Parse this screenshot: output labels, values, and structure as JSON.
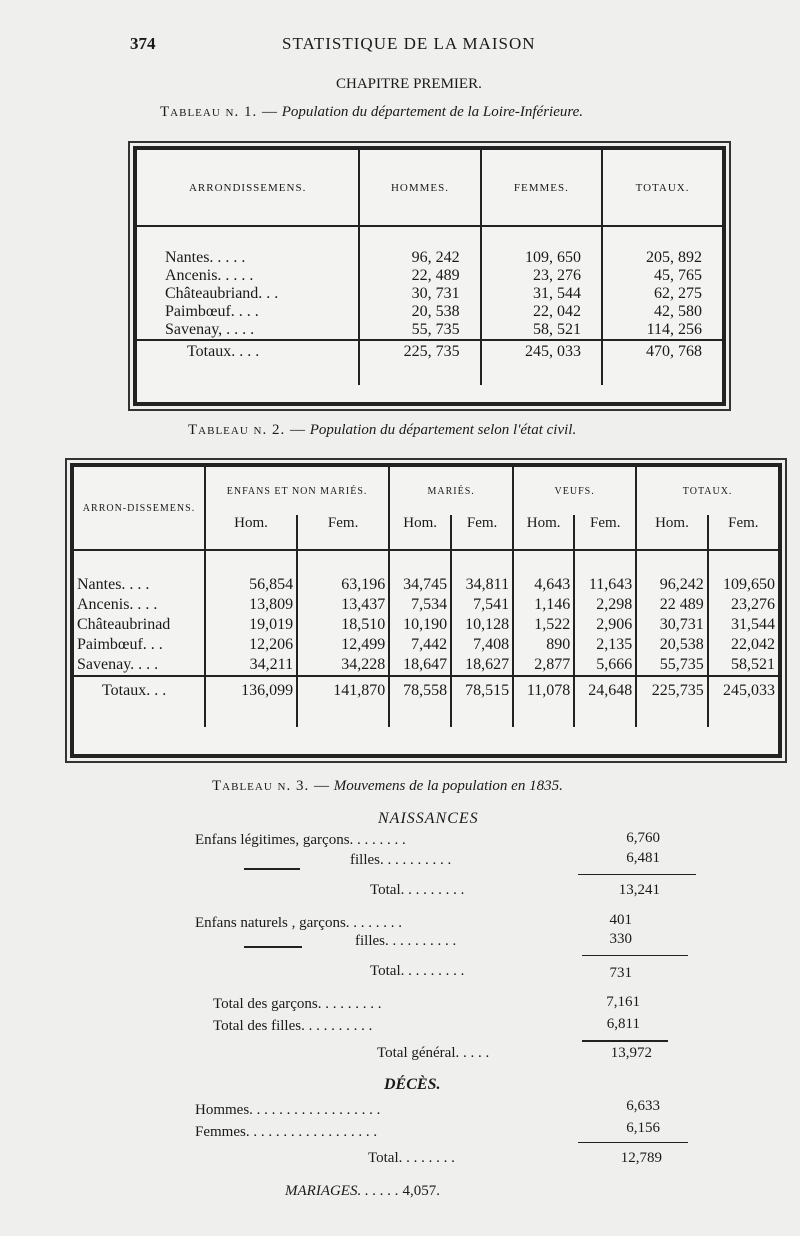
{
  "header": {
    "page_number": "374",
    "running_title": "STATISTIQUE DE LA MAISON"
  },
  "chapter": "CHAPITRE PREMIER.",
  "tableau1": {
    "caption_label": "Tableau n. 1. —",
    "caption_title": "Population du département de la Loire-Inférieure.",
    "columns": [
      "ARRONDISSEMENS.",
      "HOMMES.",
      "FEMMES.",
      "TOTAUX."
    ],
    "rows": [
      {
        "name": "Nantes. . . . .",
        "hommes": "96, 242",
        "femmes": "109, 650",
        "totaux": "205, 892"
      },
      {
        "name": "Ancenis. . . . .",
        "hommes": "22, 489",
        "femmes": "23, 276",
        "totaux": "45, 765"
      },
      {
        "name": "Châteaubriand. . .",
        "hommes": "30, 731",
        "femmes": "31, 544",
        "totaux": "62, 275"
      },
      {
        "name": "Paimbœuf. . . .",
        "hommes": "20, 538",
        "femmes": "22, 042",
        "totaux": "42, 580"
      },
      {
        "name": "Savenay, . . . .",
        "hommes": "55, 735",
        "femmes": "58, 521",
        "totaux": "114, 256"
      }
    ],
    "total": {
      "name": "Totaux. . . .",
      "hommes": "225, 735",
      "femmes": "245, 033",
      "totaux": "470, 768"
    }
  },
  "tableau2": {
    "caption_label": "Tableau n. 2. —",
    "caption_title": "Population du département selon l'état civil.",
    "first_column": "ARRON-DISSEMENS.",
    "groups": [
      "ENFANS ET NON MARIÉS.",
      "MARIÉS.",
      "VEUFS.",
      "TOTAUX."
    ],
    "sub_columns": [
      "Hom.",
      "Fem."
    ],
    "rows": [
      {
        "name": "Nantes. . . .",
        "values": [
          "56,854",
          "63,196",
          "34,745",
          "34,811",
          "4,643",
          "11,643",
          "96,242",
          "109,650"
        ]
      },
      {
        "name": "Ancenis. . . .",
        "values": [
          "13,809",
          "13,437",
          "7,534",
          "7,541",
          "1,146",
          "2,298",
          "22 489",
          "23,276"
        ]
      },
      {
        "name": "Châteaubrinad",
        "values": [
          "19,019",
          "18,510",
          "10,190",
          "10,128",
          "1,522",
          "2,906",
          "30,731",
          "31,544"
        ]
      },
      {
        "name": "Paimbœuf. . .",
        "values": [
          "12,206",
          "12,499",
          "7,442",
          "7,408",
          "890",
          "2,135",
          "20,538",
          "22,042"
        ]
      },
      {
        "name": "Savenay. . . .",
        "values": [
          "34,211",
          "34,228",
          "18,647",
          "18,627",
          "2,877",
          "5,666",
          "55,735",
          "58,521"
        ]
      }
    ],
    "total": {
      "name": "Totaux. . .",
      "values": [
        "136,099",
        "141,870",
        "78,558",
        "78,515",
        "11,078",
        "24,648",
        "225,735",
        "245,033"
      ]
    }
  },
  "tableau3": {
    "caption_label": "Tableau n. 3. —",
    "caption_title": "Mouvemens de la population en 1835.",
    "naissances": {
      "heading": "NAISSANCES",
      "legit_garcons": {
        "label": "Enfans légitimes, garçons. . . . . . . .",
        "value": "6,760"
      },
      "legit_filles": {
        "label": "filles. . . . . . . . . .",
        "value": "6,481"
      },
      "legit_total": {
        "label": "Total. . . . . . . . .",
        "value": "13,241"
      },
      "nat_garcons": {
        "label": "Enfans naturels , garçons. . . . . . . .",
        "value": "401"
      },
      "nat_filles": {
        "label": "filles. . . . . . . . . .",
        "value": "330"
      },
      "nat_total": {
        "label": "Total. . . . . . . . .",
        "value": "731"
      },
      "total_garcons": {
        "label": "Total des garçons. . . . . . . . .",
        "value": "7,161"
      },
      "total_filles": {
        "label": "Total des filles. . . . . . . . . .",
        "value": "6,811"
      },
      "total_general": {
        "label": "Total général. . . . .",
        "value": "13,972"
      }
    },
    "deces": {
      "heading": "DÉCÈS.",
      "hommes": {
        "label": "Hommes. . . . . . . . . . . . . . . . . .",
        "value": "6,633"
      },
      "femmes": {
        "label": "Femmes. . . . . . . . . . . . . . . . . .",
        "value": "6,156"
      },
      "total": {
        "label": "Total. . . . . . . .",
        "value": "12,789"
      }
    },
    "mariages": {
      "label": "MARIAGES. . . . . .",
      "value": "4,057."
    }
  }
}
